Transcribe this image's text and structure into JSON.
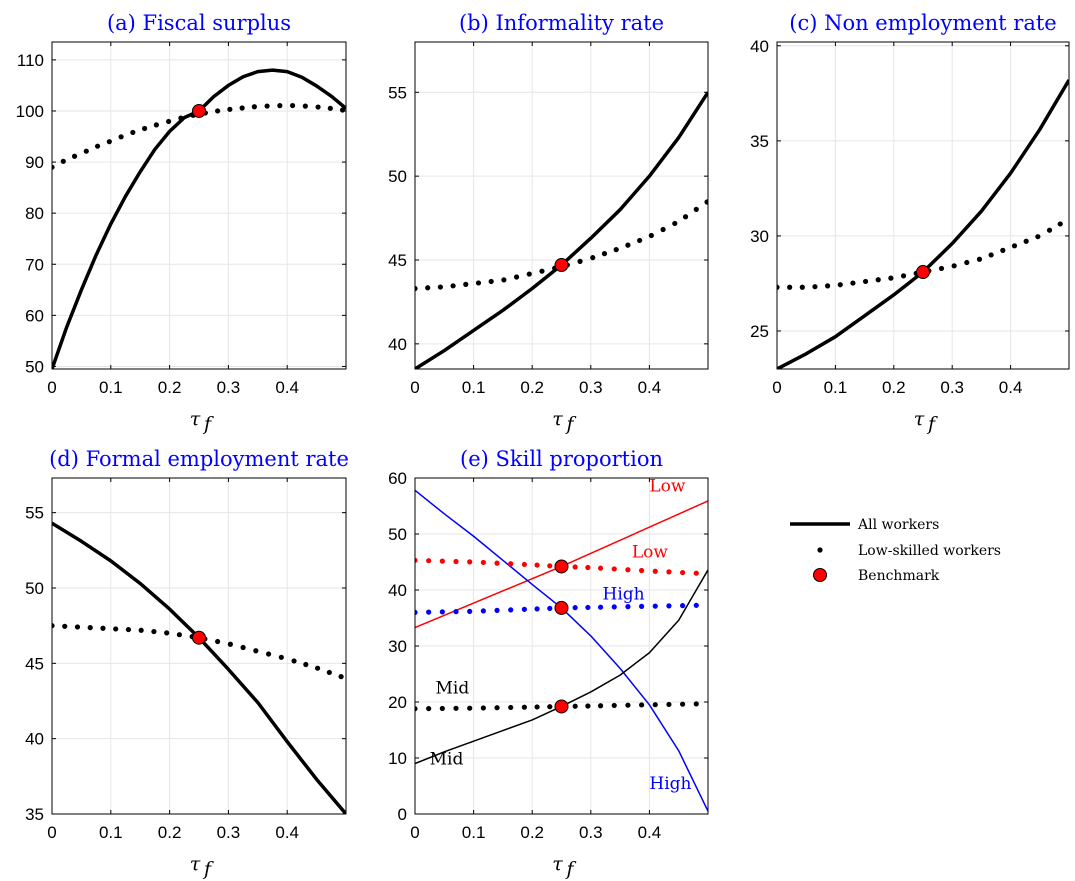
{
  "colors": {
    "title": "#0000ff",
    "black": "#000000",
    "red": "#ff0000",
    "blue": "#0000ff",
    "grid": "#e6e6e6",
    "marker_fill": "#ff0000"
  },
  "legend": {
    "all_workers": "All workers",
    "low_skilled": "Low-skilled workers",
    "benchmark": "Benchmark"
  },
  "chart_data": [
    {
      "type": "line",
      "title": "(a) Fiscal surplus",
      "xlabel": "τ",
      "xlabel_sub": "f",
      "ylabel": "",
      "xlim": [
        0,
        0.5
      ],
      "ylim": [
        49.5,
        113.5
      ],
      "xticks": [
        "0",
        "0.1",
        "0.2",
        "0.3",
        "0.4"
      ],
      "yticks": [
        "50",
        "60",
        "70",
        "80",
        "90",
        "100",
        "110"
      ],
      "grid": true,
      "series": [
        {
          "style": "solid",
          "color": "black",
          "width": 3.5,
          "x": [
            0,
            0.025,
            0.05,
            0.075,
            0.1,
            0.125,
            0.15,
            0.175,
            0.2,
            0.225,
            0.25,
            0.275,
            0.3,
            0.325,
            0.35,
            0.375,
            0.4,
            0.425,
            0.45,
            0.475,
            0.5
          ],
          "y": [
            49.5,
            57.7,
            65.0,
            71.8,
            77.9,
            83.3,
            88.1,
            92.5,
            96.0,
            98.7,
            100.0,
            102.8,
            105.0,
            106.7,
            107.7,
            108.0,
            107.7,
            106.6,
            104.9,
            102.9,
            100.5
          ]
        },
        {
          "style": "dotted",
          "color": "black",
          "x": [
            0,
            0.025,
            0.05,
            0.075,
            0.1,
            0.125,
            0.15,
            0.175,
            0.2,
            0.225,
            0.25,
            0.275,
            0.3,
            0.325,
            0.35,
            0.375,
            0.4,
            0.425,
            0.45,
            0.475,
            0.5
          ],
          "y": [
            89.0,
            90.5,
            91.7,
            93.0,
            94.1,
            95.3,
            96.3,
            97.2,
            98.0,
            98.8,
            99.4,
            99.9,
            100.3,
            100.6,
            100.9,
            101.0,
            101.1,
            101.0,
            100.8,
            100.5,
            100.1
          ]
        }
      ],
      "benchmarks": [
        {
          "x": 0.25,
          "y": 100.0
        }
      ],
      "annotations": []
    },
    {
      "type": "line",
      "title": "(b) Informality rate",
      "xlabel": "τ",
      "xlabel_sub": "f",
      "ylabel": "",
      "xlim": [
        0,
        0.5
      ],
      "ylim": [
        38.5,
        58
      ],
      "xticks": [
        "0",
        "0.1",
        "0.2",
        "0.3",
        "0.4"
      ],
      "yticks": [
        "40",
        "45",
        "50",
        "55"
      ],
      "grid": true,
      "series": [
        {
          "style": "solid",
          "color": "black",
          "width": 3.5,
          "x": [
            0,
            0.05,
            0.1,
            0.15,
            0.2,
            0.25,
            0.3,
            0.35,
            0.4,
            0.45,
            0.5
          ],
          "y": [
            38.5,
            39.6,
            40.8,
            42.0,
            43.3,
            44.7,
            46.3,
            48.0,
            50.0,
            52.3,
            55.0
          ]
        },
        {
          "style": "dotted",
          "color": "black",
          "x": [
            0,
            0.05,
            0.1,
            0.15,
            0.2,
            0.25,
            0.3,
            0.35,
            0.4,
            0.45,
            0.5
          ],
          "y": [
            43.3,
            43.4,
            43.6,
            43.8,
            44.2,
            44.6,
            45.1,
            45.7,
            46.4,
            47.3,
            48.5
          ]
        }
      ],
      "benchmarks": [
        {
          "x": 0.25,
          "y": 44.7
        }
      ],
      "annotations": []
    },
    {
      "type": "line",
      "title": "(c) Non employment rate",
      "xlabel": "τ",
      "xlabel_sub": "f",
      "ylabel": "",
      "xlim": [
        0,
        0.5
      ],
      "ylim": [
        23,
        40.2
      ],
      "xticks": [
        "0",
        "0.1",
        "0.2",
        "0.3",
        "0.4"
      ],
      "yticks": [
        "25",
        "30",
        "35",
        "40"
      ],
      "grid": true,
      "series": [
        {
          "style": "solid",
          "color": "black",
          "width": 3.5,
          "x": [
            0,
            0.05,
            0.1,
            0.15,
            0.2,
            0.25,
            0.3,
            0.35,
            0.4,
            0.45,
            0.5
          ],
          "y": [
            23.0,
            23.8,
            24.7,
            25.8,
            26.9,
            28.1,
            29.6,
            31.3,
            33.3,
            35.6,
            38.2
          ]
        },
        {
          "style": "dotted",
          "color": "black",
          "x": [
            0,
            0.05,
            0.1,
            0.15,
            0.2,
            0.25,
            0.3,
            0.35,
            0.4,
            0.45,
            0.5
          ],
          "y": [
            27.3,
            27.3,
            27.4,
            27.6,
            27.8,
            28.1,
            28.4,
            28.8,
            29.4,
            30.0,
            30.9
          ]
        }
      ],
      "benchmarks": [
        {
          "x": 0.25,
          "y": 28.1
        }
      ],
      "annotations": []
    },
    {
      "type": "line",
      "title": "(d) Formal employment rate",
      "xlabel": "τ",
      "xlabel_sub": "f",
      "ylabel": "",
      "xlim": [
        0,
        0.5
      ],
      "ylim": [
        35,
        57.3
      ],
      "xticks": [
        "0",
        "0.1",
        "0.2",
        "0.3",
        "0.4"
      ],
      "yticks": [
        "35",
        "40",
        "45",
        "50",
        "55"
      ],
      "grid": true,
      "series": [
        {
          "style": "solid",
          "color": "black",
          "width": 3.5,
          "x": [
            0,
            0.05,
            0.1,
            0.15,
            0.2,
            0.25,
            0.3,
            0.35,
            0.4,
            0.45,
            0.5
          ],
          "y": [
            54.3,
            53.1,
            51.8,
            50.3,
            48.6,
            46.7,
            44.6,
            42.4,
            39.8,
            37.3,
            35.0
          ]
        },
        {
          "style": "dotted",
          "color": "black",
          "x": [
            0,
            0.05,
            0.1,
            0.15,
            0.2,
            0.25,
            0.3,
            0.35,
            0.4,
            0.45,
            0.5
          ],
          "y": [
            47.5,
            47.4,
            47.3,
            47.2,
            47.0,
            46.7,
            46.3,
            45.8,
            45.3,
            44.7,
            44.0
          ]
        }
      ],
      "benchmarks": [
        {
          "x": 0.25,
          "y": 46.7
        }
      ],
      "annotations": []
    },
    {
      "type": "line",
      "title": "(e) Skill proportion",
      "xlabel": "τ",
      "xlabel_sub": "f",
      "ylabel": "",
      "xlim": [
        0,
        0.5
      ],
      "ylim": [
        0,
        60
      ],
      "xticks": [
        "0",
        "0.1",
        "0.2",
        "0.3",
        "0.4"
      ],
      "yticks": [
        "0",
        "10",
        "20",
        "30",
        "40",
        "50",
        "60"
      ],
      "grid": true,
      "series": [
        {
          "style": "solid",
          "color": "red",
          "width": 1.5,
          "x": [
            0,
            0.25,
            0.5
          ],
          "y": [
            33.3,
            44.2,
            55.9
          ]
        },
        {
          "style": "solid",
          "color": "blue",
          "width": 1.5,
          "x": [
            0,
            0.05,
            0.1,
            0.15,
            0.2,
            0.25,
            0.3,
            0.35,
            0.4,
            0.45,
            0.5
          ],
          "y": [
            57.8,
            53.6,
            49.6,
            45.3,
            41.0,
            36.8,
            31.8,
            26.0,
            19.5,
            11.3,
            0.5
          ]
        },
        {
          "style": "solid",
          "color": "black",
          "width": 1.5,
          "x": [
            0,
            0.05,
            0.1,
            0.15,
            0.2,
            0.25,
            0.3,
            0.35,
            0.4,
            0.45,
            0.5
          ],
          "y": [
            9.0,
            11.1,
            13.0,
            14.9,
            16.8,
            19.2,
            21.8,
            24.8,
            28.8,
            34.6,
            43.6
          ]
        },
        {
          "style": "dotted",
          "color": "red",
          "x": [
            0,
            0.1,
            0.2,
            0.25,
            0.3,
            0.4,
            0.5
          ],
          "y": [
            45.3,
            45.0,
            44.5,
            44.2,
            44.0,
            43.4,
            42.9
          ]
        },
        {
          "style": "dotted",
          "color": "blue",
          "x": [
            0,
            0.1,
            0.2,
            0.25,
            0.3,
            0.4,
            0.5
          ],
          "y": [
            36.0,
            36.2,
            36.6,
            36.8,
            36.9,
            37.1,
            37.3
          ]
        },
        {
          "style": "dotted",
          "color": "black",
          "x": [
            0,
            0.1,
            0.2,
            0.25,
            0.3,
            0.4,
            0.5
          ],
          "y": [
            18.8,
            18.9,
            19.1,
            19.2,
            19.3,
            19.5,
            19.7
          ]
        }
      ],
      "benchmarks": [
        {
          "x": 0.25,
          "y": 44.2
        },
        {
          "x": 0.25,
          "y": 36.8
        },
        {
          "x": 0.25,
          "y": 19.2
        }
      ],
      "annotations": [
        {
          "text": "Low",
          "x": 0.4,
          "y": 57.6,
          "color": "red"
        },
        {
          "text": "Low",
          "x": 0.37,
          "y": 45.8,
          "color": "red"
        },
        {
          "text": "High",
          "x": 0.32,
          "y": 38.3,
          "color": "blue"
        },
        {
          "text": "Mid",
          "x": 0.035,
          "y": 21.5,
          "color": "black"
        },
        {
          "text": "Mid",
          "x": 0.025,
          "y": 8.8,
          "color": "black"
        },
        {
          "text": "High",
          "x": 0.4,
          "y": 4.5,
          "color": "blue"
        }
      ]
    }
  ]
}
